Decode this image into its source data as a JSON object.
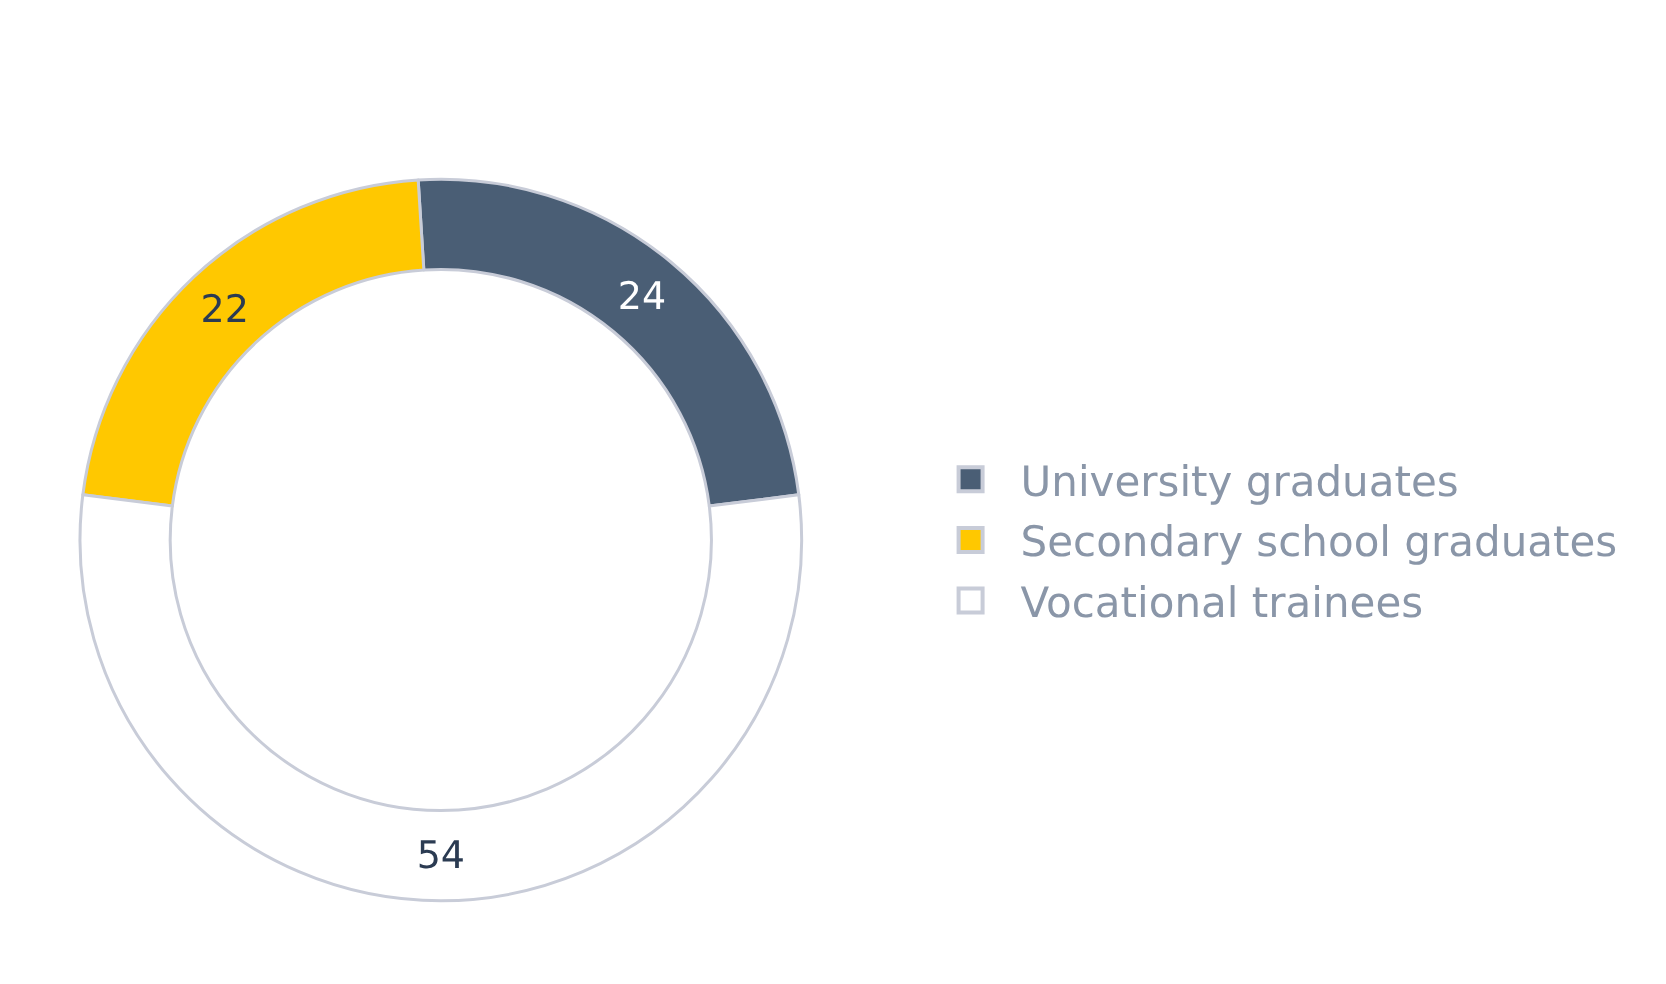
{
  "chart_data": {
    "type": "donut",
    "categories": [
      "University graduates",
      "Secondary school graduates",
      "Vocational trainees"
    ],
    "values": [
      24,
      22,
      54
    ],
    "colors": [
      "#4a5e75",
      "#ffc800",
      "#ffffff"
    ],
    "data_labels": true,
    "legend": "right"
  }
}
